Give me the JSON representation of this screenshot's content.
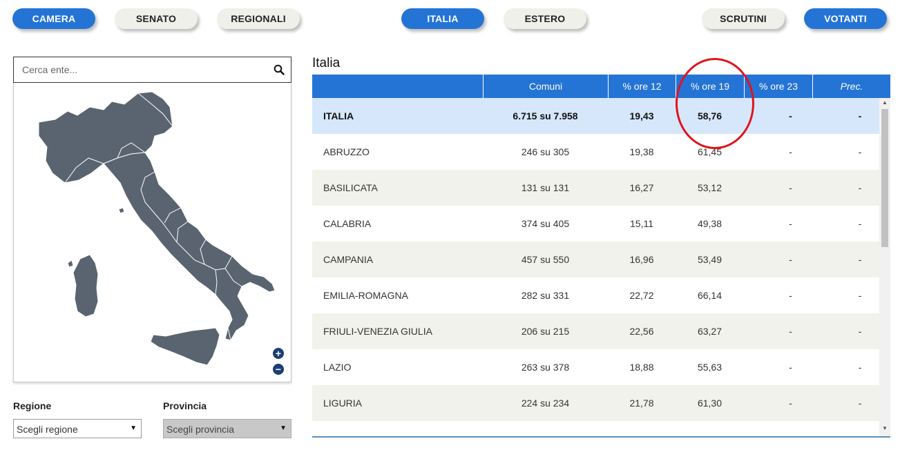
{
  "nav": {
    "left": [
      {
        "label": "CAMERA",
        "active": true
      },
      {
        "label": "SENATO",
        "active": false
      },
      {
        "label": "REGIONALI",
        "active": false
      }
    ],
    "center": [
      {
        "label": "ITALIA",
        "active": true
      },
      {
        "label": "ESTERO",
        "active": false
      }
    ],
    "right": [
      {
        "label": "SCRUTINI",
        "active": false
      },
      {
        "label": "VOTANTI",
        "active": true
      }
    ]
  },
  "search": {
    "placeholder": "Cerca ente...",
    "icon": "search-icon"
  },
  "map": {
    "zoom_in": "+",
    "zoom_out": "−",
    "fill_color": "#5a6470"
  },
  "filters": {
    "regione": {
      "label": "Regione",
      "value": "Scegli regione"
    },
    "provincia": {
      "label": "Provincia",
      "value": "Scegli provincia"
    }
  },
  "table": {
    "title": "Italia",
    "headers": [
      "",
      "Comuni",
      "% ore 12",
      "% ore 19",
      "% ore 23",
      "Prec."
    ],
    "total": {
      "name": "ITALIA",
      "comuni": "6.715 su 7.958",
      "ore12": "19,43",
      "ore19": "58,76",
      "ore23": "-",
      "prec": "-"
    },
    "rows": [
      {
        "name": "ABRUZZO",
        "comuni": "246 su 305",
        "ore12": "19,38",
        "ore19": "61,45",
        "ore23": "-",
        "prec": "-"
      },
      {
        "name": "BASILICATA",
        "comuni": "131 su 131",
        "ore12": "16,27",
        "ore19": "53,12",
        "ore23": "-",
        "prec": "-"
      },
      {
        "name": "CALABRIA",
        "comuni": "374 su 405",
        "ore12": "15,11",
        "ore19": "49,38",
        "ore23": "-",
        "prec": "-"
      },
      {
        "name": "CAMPANIA",
        "comuni": "457 su 550",
        "ore12": "16,96",
        "ore19": "53,49",
        "ore23": "-",
        "prec": "-"
      },
      {
        "name": "EMILIA-ROMAGNA",
        "comuni": "282 su 331",
        "ore12": "22,72",
        "ore19": "66,14",
        "ore23": "-",
        "prec": "-"
      },
      {
        "name": "FRIULI-VENEZIA GIULIA",
        "comuni": "206 su 215",
        "ore12": "22,56",
        "ore19": "63,27",
        "ore23": "-",
        "prec": "-"
      },
      {
        "name": "LAZIO",
        "comuni": "263 su 378",
        "ore12": "18,88",
        "ore19": "55,63",
        "ore23": "-",
        "prec": "-"
      },
      {
        "name": "LIGURIA",
        "comuni": "224 su 234",
        "ore12": "21,78",
        "ore19": "61,30",
        "ore23": "-",
        "prec": "-"
      }
    ]
  },
  "colors": {
    "accent": "#2474d6",
    "pill_inactive": "#f0f0eb",
    "highlight_circle": "#e0131a",
    "total_row": "#d6e7fb"
  }
}
